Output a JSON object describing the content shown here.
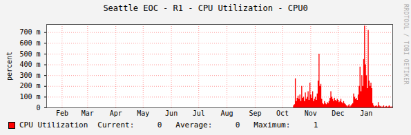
{
  "chart_data": {
    "type": "area",
    "title": "Seattle EOC - R1 - CPU Utilization - CPU0",
    "y_label": "percent",
    "annotations": [
      "RRDTOOL / TOBI OETIKER"
    ],
    "series": [
      {
        "name": "CPU Utilization",
        "color": "#ff0000"
      }
    ],
    "stats": [
      {
        "label": "Current:",
        "value": 0
      },
      {
        "label": "Average:",
        "value": 0
      },
      {
        "label": "Maximum:",
        "value": 1
      }
    ],
    "grid": true,
    "xlim": [
      0,
      380
    ],
    "xticks": [
      {
        "value": 17,
        "label": "Feb"
      },
      {
        "value": 45,
        "label": "Mar"
      },
      {
        "value": 76,
        "label": "Apr"
      },
      {
        "value": 106,
        "label": "May"
      },
      {
        "value": 137,
        "label": "Jun"
      },
      {
        "value": 167,
        "label": "Jul"
      },
      {
        "value": 198,
        "label": "Aug"
      },
      {
        "value": 229,
        "label": "Sep"
      },
      {
        "value": 259,
        "label": "Oct"
      },
      {
        "value": 290,
        "label": "Nov"
      },
      {
        "value": 320,
        "label": "Dec"
      },
      {
        "value": 351,
        "label": "Jan"
      }
    ],
    "ylim": [
      0,
      0.775
    ],
    "yticks": [
      0,
      {
        "value": 0.1,
        "label": "100 m"
      },
      {
        "value": 0.2,
        "label": "200 m"
      },
      {
        "value": 0.3,
        "label": "300 m"
      },
      {
        "value": 0.4,
        "label": "400 m"
      },
      {
        "value": 0.5,
        "label": "500 m"
      },
      {
        "value": 0.6,
        "label": "600 m"
      },
      {
        "value": 0.7,
        "label": "700 m"
      }
    ],
    "x": [
      0,
      268,
      270,
      271,
      272,
      273,
      274,
      275,
      276,
      277,
      278,
      279,
      280,
      281,
      282,
      283,
      284,
      285,
      286,
      287,
      288,
      289,
      290,
      291,
      292,
      293,
      294,
      295,
      296,
      297,
      298,
      299,
      300,
      301,
      302,
      303,
      304,
      305,
      306,
      307,
      308,
      309,
      310,
      311,
      312,
      313,
      314,
      315,
      316,
      317,
      318,
      319,
      320,
      321,
      322,
      323,
      324,
      325,
      326,
      327,
      328,
      329,
      330,
      331,
      332,
      333,
      334,
      335,
      336,
      337,
      338,
      339,
      340,
      341,
      342,
      343,
      344,
      345,
      346,
      347,
      348,
      349,
      350,
      351,
      352,
      353,
      354,
      355,
      356,
      357,
      358,
      359,
      360,
      361,
      362,
      363,
      364,
      365,
      366,
      367,
      368,
      369,
      370,
      371,
      372,
      373,
      374,
      375,
      376,
      377,
      378,
      379,
      380
    ],
    "values": [
      0,
      0,
      0,
      0.02,
      0.03,
      0.27,
      0.06,
      0.09,
      0.11,
      0.08,
      0.12,
      0.06,
      0.2,
      0.09,
      0.1,
      0.06,
      0.14,
      0.08,
      0.1,
      0.15,
      0.07,
      0.23,
      0.12,
      0.09,
      0.15,
      0.06,
      0.08,
      0.1,
      0.07,
      0.13,
      0.25,
      0.5,
      0.2,
      0.22,
      0.08,
      0.04,
      0.03,
      0.06,
      0.04,
      0.03,
      0.05,
      0.04,
      0.06,
      0.09,
      0.15,
      0.1,
      0.08,
      0.06,
      0.09,
      0.07,
      0.06,
      0.08,
      0.07,
      0.05,
      0.06,
      0.08,
      0.05,
      0.04,
      0.06,
      0.04,
      0.03,
      0.02,
      0.01,
      0.02,
      0.03,
      0.01,
      0.02,
      0.03,
      0.04,
      0.13,
      0.1,
      0.08,
      0.09,
      0.07,
      0.12,
      0.2,
      0.38,
      0.15,
      0.3,
      0.2,
      0.45,
      0.76,
      0.4,
      0.3,
      0.18,
      0.72,
      0.25,
      0.2,
      0.23,
      0.18,
      0.04,
      0.02,
      0.01,
      0.015,
      0.02,
      0.01,
      0.05,
      0.02,
      0.01,
      0.015,
      0.005,
      0.01,
      0.02,
      0.005,
      0.01,
      0.015,
      0.005,
      0.01,
      0.02,
      0.01,
      0.005,
      0.01,
      0.005
    ]
  }
}
